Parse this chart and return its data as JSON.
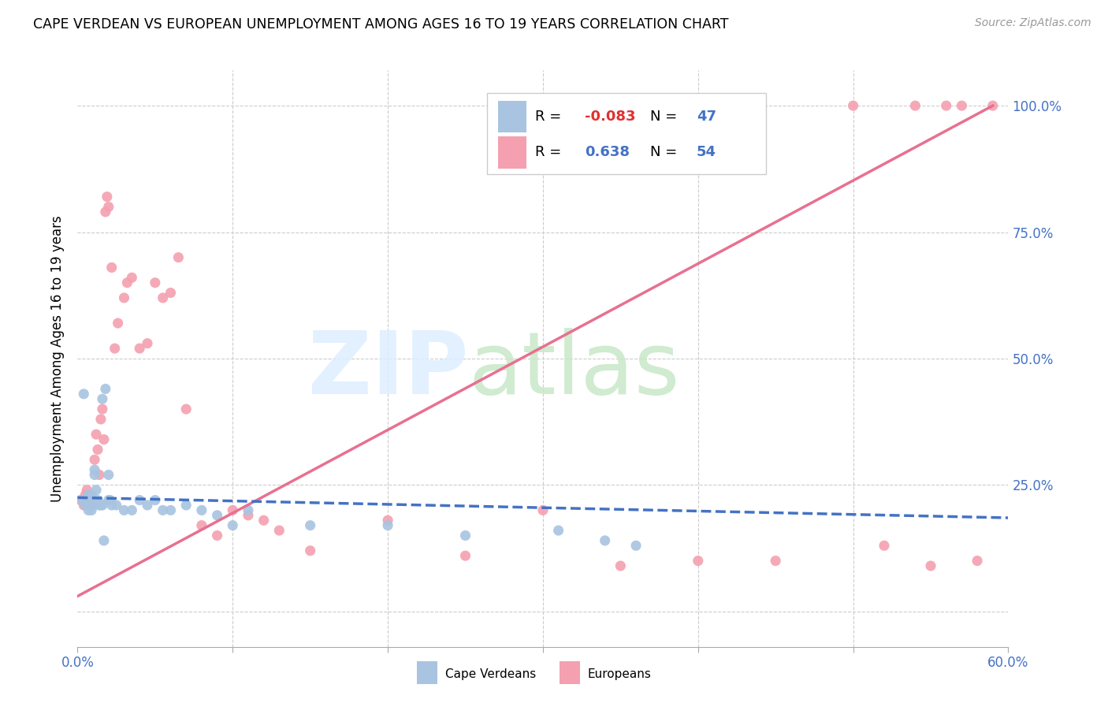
{
  "title": "CAPE VERDEAN VS EUROPEAN UNEMPLOYMENT AMONG AGES 16 TO 19 YEARS CORRELATION CHART",
  "source": "Source: ZipAtlas.com",
  "ylabel": "Unemployment Among Ages 16 to 19 years",
  "x_range": [
    0.0,
    0.6
  ],
  "y_range": [
    -0.07,
    1.07
  ],
  "cape_verdean_R": "-0.083",
  "cape_verdean_N": "47",
  "european_R": "0.638",
  "european_N": "54",
  "cape_verdean_color": "#a8c4e0",
  "european_color": "#f4a0b0",
  "cape_verdean_line_color": "#4472c4",
  "european_line_color": "#e87090",
  "cv_x": [
    0.003,
    0.005,
    0.005,
    0.006,
    0.006,
    0.007,
    0.007,
    0.008,
    0.008,
    0.009,
    0.009,
    0.01,
    0.01,
    0.011,
    0.011,
    0.012,
    0.013,
    0.014,
    0.015,
    0.016,
    0.017,
    0.018,
    0.016,
    0.02,
    0.02,
    0.021,
    0.022,
    0.025,
    0.03,
    0.035,
    0.04,
    0.045,
    0.05,
    0.055,
    0.06,
    0.07,
    0.08,
    0.09,
    0.1,
    0.11,
    0.15,
    0.2,
    0.25,
    0.31,
    0.34,
    0.36,
    0.004
  ],
  "cv_y": [
    0.22,
    0.22,
    0.21,
    0.22,
    0.21,
    0.2,
    0.23,
    0.22,
    0.21,
    0.2,
    0.23,
    0.22,
    0.21,
    0.28,
    0.27,
    0.24,
    0.22,
    0.21,
    0.21,
    0.21,
    0.14,
    0.44,
    0.42,
    0.22,
    0.27,
    0.22,
    0.21,
    0.21,
    0.2,
    0.2,
    0.22,
    0.21,
    0.22,
    0.2,
    0.2,
    0.21,
    0.2,
    0.19,
    0.17,
    0.2,
    0.17,
    0.17,
    0.15,
    0.16,
    0.14,
    0.13,
    0.43
  ],
  "eu_x": [
    0.002,
    0.003,
    0.004,
    0.005,
    0.005,
    0.006,
    0.007,
    0.008,
    0.009,
    0.01,
    0.011,
    0.012,
    0.013,
    0.014,
    0.015,
    0.016,
    0.017,
    0.018,
    0.019,
    0.02,
    0.022,
    0.024,
    0.026,
    0.03,
    0.032,
    0.035,
    0.04,
    0.045,
    0.05,
    0.055,
    0.06,
    0.065,
    0.07,
    0.08,
    0.09,
    0.1,
    0.11,
    0.12,
    0.13,
    0.15,
    0.2,
    0.25,
    0.3,
    0.35,
    0.4,
    0.45,
    0.5,
    0.52,
    0.54,
    0.55,
    0.56,
    0.57,
    0.58,
    0.59
  ],
  "eu_y": [
    0.22,
    0.22,
    0.21,
    0.23,
    0.22,
    0.24,
    0.22,
    0.23,
    0.21,
    0.22,
    0.3,
    0.35,
    0.32,
    0.27,
    0.38,
    0.4,
    0.34,
    0.79,
    0.82,
    0.8,
    0.68,
    0.52,
    0.57,
    0.62,
    0.65,
    0.66,
    0.52,
    0.53,
    0.65,
    0.62,
    0.63,
    0.7,
    0.4,
    0.17,
    0.15,
    0.2,
    0.19,
    0.18,
    0.16,
    0.12,
    0.18,
    0.11,
    0.2,
    0.09,
    0.1,
    0.1,
    1.0,
    0.13,
    1.0,
    0.09,
    1.0,
    1.0,
    0.1,
    1.0
  ],
  "cv_line_x": [
    0.0,
    0.6
  ],
  "cv_line_y": [
    0.225,
    0.185
  ],
  "eu_line_x": [
    0.0,
    0.59
  ],
  "eu_line_y": [
    0.03,
    1.0
  ]
}
